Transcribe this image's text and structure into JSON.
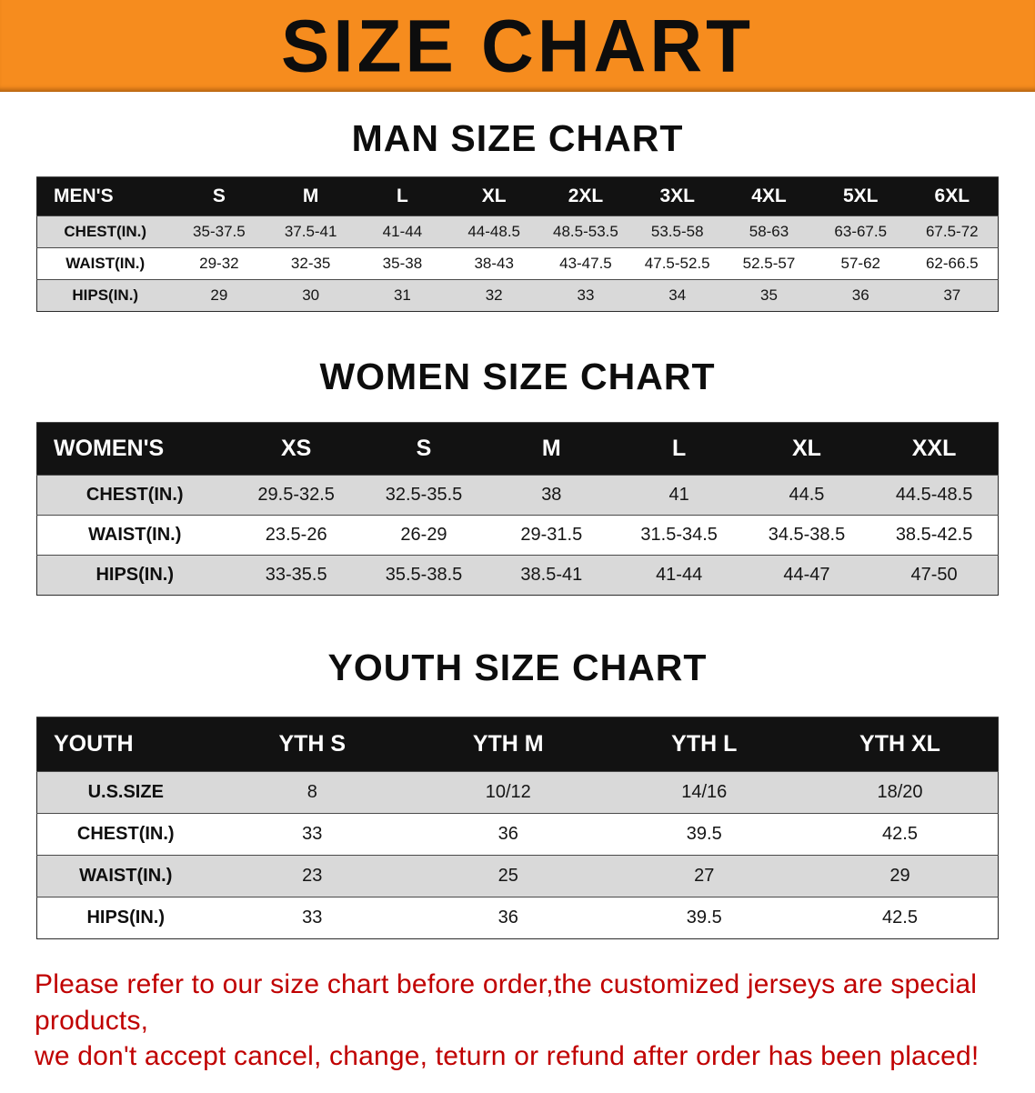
{
  "banner": {
    "title": "SIZE CHART"
  },
  "sections": {
    "men": {
      "heading": "MAN SIZE CHART"
    },
    "women": {
      "heading": "WOMEN SIZE CHART"
    },
    "youth": {
      "heading": "YOUTH SIZE CHART"
    }
  },
  "men_table": {
    "header": [
      "MEN'S",
      "S",
      "M",
      "L",
      "XL",
      "2XL",
      "3XL",
      "4XL",
      "5XL",
      "6XL"
    ],
    "rows": [
      [
        "CHEST(IN.)",
        "35-37.5",
        "37.5-41",
        "41-44",
        "44-48.5",
        "48.5-53.5",
        "53.5-58",
        "58-63",
        "63-67.5",
        "67.5-72"
      ],
      [
        "WAIST(IN.)",
        "29-32",
        "32-35",
        "35-38",
        "38-43",
        "43-47.5",
        "47.5-52.5",
        "52.5-57",
        "57-62",
        "62-66.5"
      ],
      [
        "HIPS(IN.)",
        "29",
        "30",
        "31",
        "32",
        "33",
        "34",
        "35",
        "36",
        "37"
      ]
    ]
  },
  "women_table": {
    "header": [
      "WOMEN'S",
      "XS",
      "S",
      "M",
      "L",
      "XL",
      "XXL"
    ],
    "rows": [
      [
        "CHEST(IN.)",
        "29.5-32.5",
        "32.5-35.5",
        "38",
        "41",
        "44.5",
        "44.5-48.5"
      ],
      [
        "WAIST(IN.)",
        "23.5-26",
        "26-29",
        "29-31.5",
        "31.5-34.5",
        "34.5-38.5",
        "38.5-42.5"
      ],
      [
        "HIPS(IN.)",
        "33-35.5",
        "35.5-38.5",
        "38.5-41",
        "41-44",
        "44-47",
        "47-50"
      ]
    ]
  },
  "youth_table": {
    "header": [
      "YOUTH",
      "YTH S",
      "YTH M",
      "YTH L",
      "YTH XL"
    ],
    "rows": [
      [
        "U.S.SIZE",
        "8",
        "10/12",
        "14/16",
        "18/20"
      ],
      [
        "CHEST(IN.)",
        "33",
        "36",
        "39.5",
        "42.5"
      ],
      [
        "WAIST(IN.)",
        "23",
        "25",
        "27",
        "29"
      ],
      [
        "HIPS(IN.)",
        "33",
        "36",
        "39.5",
        "42.5"
      ]
    ]
  },
  "footer_note": {
    "line1": "Please refer to our size chart before order,the customized jerseys are special products,",
    "line2": "we don't accept cancel, change, teturn or refund after order has been placed!"
  },
  "colors": {
    "banner_orange": "#F68C1E",
    "table_header_black": "#121212",
    "row_gray": "#D9D9D9",
    "note_red": "#C00000"
  }
}
